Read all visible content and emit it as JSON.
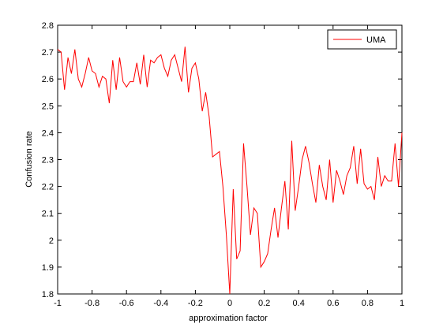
{
  "chart_data": {
    "type": "line",
    "xlabel": "approximation factor",
    "ylabel": "Confusion rate",
    "x": [
      -1,
      -0.98,
      -0.96,
      -0.94,
      -0.92,
      -0.9,
      -0.88,
      -0.86,
      -0.84,
      -0.82,
      -0.8,
      -0.78,
      -0.76,
      -0.74,
      -0.72,
      -0.7,
      -0.68,
      -0.66,
      -0.64,
      -0.62,
      -0.6,
      -0.58,
      -0.56,
      -0.54,
      -0.52,
      -0.5,
      -0.48,
      -0.46,
      -0.44,
      -0.42,
      -0.4,
      -0.38,
      -0.36,
      -0.34,
      -0.32,
      -0.3,
      -0.28,
      -0.26,
      -0.24,
      -0.22,
      -0.2,
      -0.18,
      -0.16,
      -0.14,
      -0.12,
      -0.1,
      -0.08,
      -0.06,
      -0.04,
      -0.02,
      0,
      0.02,
      0.04,
      0.06,
      0.08,
      0.1,
      0.12,
      0.14,
      0.16,
      0.18,
      0.2,
      0.22,
      0.24,
      0.26,
      0.28,
      0.3,
      0.32,
      0.34,
      0.36,
      0.38,
      0.4,
      0.42,
      0.44,
      0.46,
      0.48,
      0.5,
      0.52,
      0.54,
      0.56,
      0.58,
      0.6,
      0.62,
      0.64,
      0.66,
      0.68,
      0.7,
      0.72,
      0.74,
      0.76,
      0.78,
      0.8,
      0.82,
      0.84,
      0.86,
      0.88,
      0.9,
      0.92,
      0.94,
      0.96,
      0.98,
      1
    ],
    "series": [
      {
        "name": "UMA",
        "color": "#ff0000",
        "values": [
          2.71,
          2.7,
          2.56,
          2.68,
          2.62,
          2.71,
          2.6,
          2.57,
          2.62,
          2.68,
          2.63,
          2.62,
          2.57,
          2.61,
          2.6,
          2.51,
          2.67,
          2.56,
          2.68,
          2.59,
          2.57,
          2.59,
          2.59,
          2.66,
          2.58,
          2.69,
          2.57,
          2.67,
          2.66,
          2.68,
          2.69,
          2.64,
          2.61,
          2.67,
          2.69,
          2.64,
          2.59,
          2.72,
          2.55,
          2.64,
          2.66,
          2.6,
          2.48,
          2.55,
          2.46,
          2.31,
          2.32,
          2.33,
          2.2,
          2.02,
          1.8,
          2.19,
          1.93,
          1.96,
          2.36,
          2.2,
          2.02,
          2.12,
          2.1,
          1.9,
          1.92,
          1.95,
          2.04,
          2.12,
          2.01,
          2.12,
          2.22,
          2.04,
          2.37,
          2.11,
          2.2,
          2.3,
          2.35,
          2.29,
          2.21,
          2.14,
          2.28,
          2.2,
          2.15,
          2.3,
          2.14,
          2.26,
          2.22,
          2.17,
          2.24,
          2.27,
          2.35,
          2.21,
          2.34,
          2.21,
          2.19,
          2.2,
          2.15,
          2.31,
          2.2,
          2.24,
          2.22,
          2.22,
          2.36,
          2.2,
          2.4
        ]
      }
    ],
    "xlim": [
      -1,
      1
    ],
    "xticks": [
      -1,
      -0.8,
      -0.6,
      -0.4,
      -0.2,
      0,
      0.2,
      0.4,
      0.6,
      0.8,
      1
    ],
    "ylim": [
      1.8,
      2.8
    ],
    "yticks": [
      1.8,
      1.9,
      2,
      2.1,
      2.2,
      2.3,
      2.4,
      2.5,
      2.6,
      2.7,
      2.8
    ],
    "legend": "upper right",
    "grid": false
  }
}
